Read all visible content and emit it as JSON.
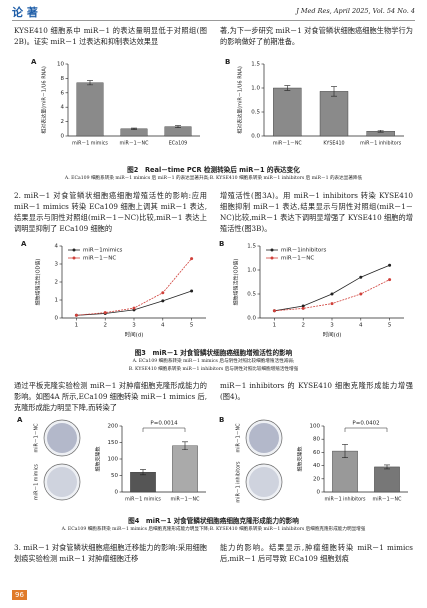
{
  "header": {
    "section": "论 著",
    "journal": "J Med Res, April 2025, Vol. 54 No. 4"
  },
  "paragraphs": [
    {
      "left": "KYSE410 细胞系中 miR－1 的表达量明显低于对照组(图2B)。证实 miR－1 过表达和抑制表达效果显",
      "right": "著,为下一步研究 miR－1 对食管鳞状细胞癌细胞生物学行为的影响做好了前期准备。"
    },
    {
      "left": "2. miR－1 对食管鳞状细胞癌细胞增殖活性的影响:应用 miR－1 mimics 转染 ECa109 细胞上调其 miR－1 表达,结果显示与阴性对照组(miR－1－NC)比较,miR－1 表达上调明显抑制了 ECa109 细胞的",
      "right": "增殖活性(图3A)。用 miR－1 inhibitors 转染 KYSE410 细胞抑制 miR－1 表达,结果显示与阴性对照组(miR－1－NC)比较,miR－1 表达下调明显增强了 KYSE410 细胞的增殖活性(图3B)。"
    },
    {
      "left": "通过平板克隆实验检测 miR－1 对肿瘤细胞克隆形成能力的影响。如图4A 所示,ECa109 细胞转染 miR－1 mimics 后,克隆形成能力明显下降,而转染了",
      "right": "miR－1 inhibitors 的 KYSE410 细胞克隆形成能力增强(图4)。"
    },
    {
      "left": "3. miR－1 对食管鳞状细胞癌细胞迁移能力的影响:采用细胞划痕实验检测 miR－1 对肿瘤细胞迁移",
      "right": "能力的影响。结果显示,肿瘤细胞转染 miR－1 mimics 后,miR－1 后可导致 ECa109 细胞划痕"
    }
  ],
  "figures": [
    {
      "caption": "图2　Real－time PCR 检测转染后 miR－1 的表达变化",
      "notes": [
        "A. ECa109 细胞系转染 miR－1 mimics 后 miR－1 的表达显著升高;B. KYSE410 细胞系转染 miR－1 inhibitors 后 miR－1 的表达显著降低"
      ]
    },
    {
      "caption": "图3　miR－1 对食管鳞状细胞癌细胞增殖活性的影响",
      "notes": [
        "A. ECa109 细胞系转染 miR－1 mimics 后与阴性对照比较细胞增殖活性减弱;",
        "B. KYSE410 细胞系转染 miR－1 inhibitors 后与阴性对照比较细胞增殖活性增强"
      ]
    },
    {
      "caption": "图4　miR－1 对食管鳞状细胞癌细胞克隆形成能力的影响",
      "notes": [
        "A. ECa109 细胞系转染 miR－1 mimics 后细胞克隆形成能力明显下降;B. KYSE410 细胞系转染 miR－1 inhibitors 后细胞克隆形成能力明显增强"
      ]
    }
  ],
  "page_number": "96",
  "chart_data": [
    {
      "type": "bar",
      "panel": "A",
      "y_label": "相对表达量(miR－1/U6 RNA)",
      "categories": [
        "miR－1 mimics",
        "miR－1－NC",
        "ECa109"
      ],
      "values": [
        7.4,
        1.0,
        1.3
      ],
      "errors": [
        0.3,
        0.1,
        0.15
      ],
      "colors": [
        "#8a8a8a",
        "#8a8a8a",
        "#8a8a8a"
      ],
      "ylim": [
        0,
        10
      ],
      "yticks": [
        0,
        2,
        4,
        6,
        8,
        10
      ]
    },
    {
      "type": "bar",
      "panel": "B",
      "y_label": "相对表达量(miR－1/U6 RNA)",
      "categories": [
        "miR－1－NC",
        "KYSE410",
        "miR－1 inhibitors"
      ],
      "values": [
        1.0,
        0.93,
        0.1
      ],
      "errors": [
        0.05,
        0.1,
        0.02
      ],
      "colors": [
        "#8a8a8a",
        "#8a8a8a",
        "#8a8a8a"
      ],
      "ylim": [
        0,
        1.5
      ],
      "yticks": [
        {
          "value": 0,
          "label": "0.0"
        },
        0.5,
        {
          "value": 1,
          "label": "1.0"
        },
        1.5
      ]
    },
    {
      "type": "line",
      "panel": "A",
      "y_label": "细胞增殖活性(OD值)",
      "x_label": "时间(d)",
      "x": [
        1,
        2,
        3,
        4,
        5
      ],
      "xlim": [
        0.5,
        5.5
      ],
      "xticks": [
        1,
        2,
        3,
        4,
        5
      ],
      "ylim": [
        0,
        4
      ],
      "yticks": [
        0,
        1,
        2,
        3,
        4
      ],
      "series": [
        {
          "name": "miR－1mimics",
          "color": "#222222",
          "values": [
            0.15,
            0.25,
            0.45,
            0.95,
            1.5
          ]
        },
        {
          "name": "miR－1－NC",
          "color": "#d0403a",
          "values": [
            0.15,
            0.3,
            0.55,
            1.4,
            3.3
          ]
        }
      ]
    },
    {
      "type": "line",
      "panel": "B",
      "y_label": "细胞增殖活性(OD值)",
      "x_label": "时间(d)",
      "x": [
        1,
        2,
        3,
        4,
        5
      ],
      "xlim": [
        0.5,
        5.5
      ],
      "xticks": [
        1,
        2,
        3,
        4,
        5
      ],
      "ylim": [
        0,
        1.5
      ],
      "yticks": [
        {
          "value": 0,
          "label": "0.0"
        },
        0.5,
        {
          "value": 1,
          "label": "1.0"
        },
        1.5
      ],
      "series": [
        {
          "name": "miR－1inhibitors",
          "color": "#222222",
          "values": [
            0.15,
            0.25,
            0.5,
            0.85,
            1.1
          ]
        },
        {
          "name": "miR－1－NC",
          "color": "#d0403a",
          "values": [
            0.15,
            0.2,
            0.3,
            0.5,
            0.8
          ]
        }
      ]
    },
    {
      "type": "bar",
      "panel": "A",
      "y_label": "细胞克隆数",
      "dish_labels": [
        "miR－1－NC",
        "miR－1 mimics"
      ],
      "categories": [
        "miR－1 mimics",
        "miR－1－NC"
      ],
      "values": [
        60,
        140
      ],
      "errors": [
        8,
        12
      ],
      "colors": [
        "#555555",
        "#aaaaaa"
      ],
      "ylim": [
        0,
        200
      ],
      "yticks": [
        0,
        50,
        100,
        150,
        200
      ],
      "annotation": "P=0.0014"
    },
    {
      "type": "bar",
      "panel": "B",
      "y_label": "细胞克隆数",
      "dish_labels": [
        "miR－1－NC",
        "miR－1 inhibitors"
      ],
      "categories": [
        "miR－1 inhibitors",
        "miR－1－NC"
      ],
      "values": [
        62,
        38
      ],
      "errors": [
        10,
        3
      ],
      "colors": [
        "#999999",
        "#777777"
      ],
      "ylim": [
        0,
        100
      ],
      "yticks": [
        0,
        20,
        40,
        60,
        80,
        100
      ],
      "annotation": "P=0.0402"
    }
  ]
}
